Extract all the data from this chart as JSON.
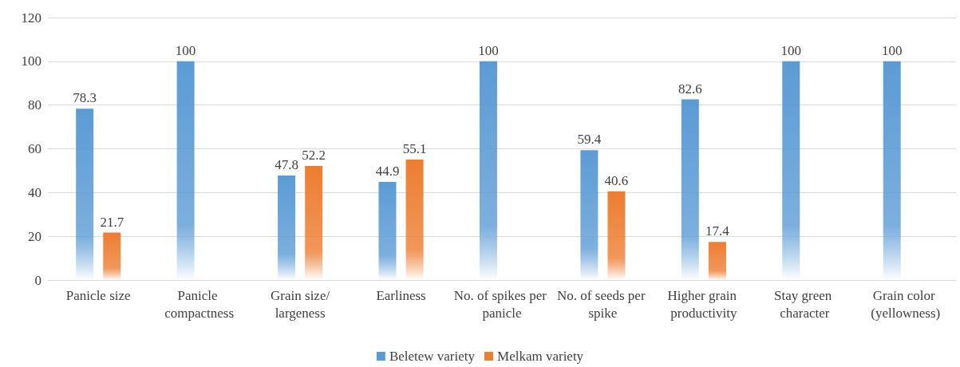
{
  "chart_data": {
    "type": "bar",
    "categories": [
      "Panicle size",
      "Panicle compactness",
      "Grain size/largeness",
      "Earliness",
      "No. of spikes per panicle",
      "No. of seeds per spike",
      "Higher grain productivity",
      "Stay green character",
      "Grain color (yellowness)"
    ],
    "series": [
      {
        "name": "Beletew variety",
        "color": "#5b9bd5",
        "values": [
          78.3,
          100,
          47.8,
          44.9,
          100,
          59.4,
          82.6,
          100,
          100
        ]
      },
      {
        "name": "Melkam variety",
        "color": "#ed7d31",
        "values": [
          21.7,
          null,
          52.2,
          55.1,
          null,
          40.6,
          17.4,
          null,
          null
        ]
      }
    ],
    "ylim": [
      0,
      120
    ],
    "yticks": [
      0,
      20,
      40,
      60,
      80,
      100,
      120
    ],
    "grid": "y",
    "legend": "bottom",
    "data_labels": true
  }
}
